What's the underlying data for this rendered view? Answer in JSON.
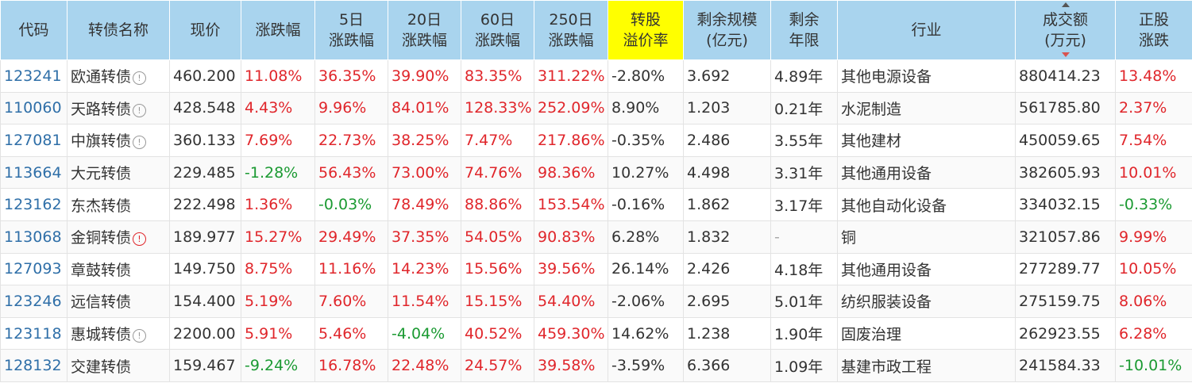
{
  "headers": {
    "code": "代码",
    "name": "转债名称",
    "price": "现价",
    "change": "涨跌幅",
    "d5": [
      "5日",
      "涨跌幅"
    ],
    "d20": [
      "20日",
      "涨跌幅"
    ],
    "d60": [
      "60日",
      "涨跌幅"
    ],
    "d250": [
      "250日",
      "涨跌幅"
    ],
    "premium": [
      "转股",
      "溢价率"
    ],
    "scale": [
      "剩余规模",
      "(亿元)"
    ],
    "years": [
      "剩余",
      "年限"
    ],
    "industry": "行业",
    "volume": [
      "成交额",
      "(万元)"
    ],
    "stock_change": [
      "正股",
      "涨跌"
    ]
  },
  "highlight_color": "#ffff00",
  "up_color": "#e0262b",
  "down_color": "#1b9a32",
  "sort": {
    "column": "volume",
    "direction": "descending"
  },
  "rows": [
    {
      "code": "123241",
      "name": "欧通转债",
      "icon": "info-icon",
      "price": "460.200",
      "change": "11.08%",
      "d5": "36.35%",
      "d20": "39.90%",
      "d60": "83.35%",
      "d250": "311.22%",
      "premium": "-2.80%",
      "scale": "3.692",
      "years": "4.89年",
      "industry": "其他电源设备",
      "volume": "880414.23",
      "stock_change": "13.48%"
    },
    {
      "code": "110060",
      "name": "天路转债",
      "icon": "info-icon",
      "price": "428.548",
      "change": "4.43%",
      "d5": "9.96%",
      "d20": "84.01%",
      "d60": "128.33%",
      "d250": "252.09%",
      "premium": "8.90%",
      "scale": "1.203",
      "years": "0.21年",
      "industry": "水泥制造",
      "volume": "561785.80",
      "stock_change": "2.37%"
    },
    {
      "code": "127081",
      "name": "中旗转债",
      "icon": "info-icon",
      "price": "360.133",
      "change": "7.69%",
      "d5": "22.73%",
      "d20": "38.25%",
      "d60": "7.47%",
      "d250": "217.86%",
      "premium": "-0.35%",
      "scale": "2.486",
      "years": "3.55年",
      "industry": "其他建材",
      "volume": "450059.65",
      "stock_change": "7.54%"
    },
    {
      "code": "113664",
      "name": "大元转债",
      "icon": "",
      "price": "229.485",
      "change": "-1.28%",
      "d5": "56.43%",
      "d20": "73.00%",
      "d60": "74.76%",
      "d250": "98.36%",
      "premium": "10.27%",
      "scale": "4.498",
      "years": "3.31年",
      "industry": "其他通用设备",
      "volume": "382605.93",
      "stock_change": "10.01%"
    },
    {
      "code": "123162",
      "name": "东杰转债",
      "icon": "",
      "price": "222.498",
      "change": "1.36%",
      "d5": "-0.03%",
      "d20": "78.49%",
      "d60": "88.86%",
      "d250": "153.54%",
      "premium": "-0.16%",
      "scale": "1.862",
      "years": "3.17年",
      "industry": "其他自动化设备",
      "volume": "334032.15",
      "stock_change": "-0.33%"
    },
    {
      "code": "113068",
      "name": "金铜转债",
      "icon": "warning-icon",
      "price": "189.977",
      "change": "15.27%",
      "d5": "29.49%",
      "d20": "37.35%",
      "d60": "54.05%",
      "d250": "90.83%",
      "premium": "6.28%",
      "scale": "1.832",
      "years": "-",
      "industry": "铜",
      "volume": "321057.86",
      "stock_change": "9.99%"
    },
    {
      "code": "127093",
      "name": "章鼓转债",
      "icon": "",
      "price": "149.750",
      "change": "8.75%",
      "d5": "11.16%",
      "d20": "14.23%",
      "d60": "15.56%",
      "d250": "39.56%",
      "premium": "26.14%",
      "scale": "2.426",
      "years": "4.18年",
      "industry": "其他通用设备",
      "volume": "277289.77",
      "stock_change": "10.05%"
    },
    {
      "code": "123246",
      "name": "远信转债",
      "icon": "",
      "price": "154.400",
      "change": "5.19%",
      "d5": "7.60%",
      "d20": "11.54%",
      "d60": "15.15%",
      "d250": "54.40%",
      "premium": "-2.06%",
      "scale": "2.695",
      "years": "5.01年",
      "industry": "纺织服装设备",
      "volume": "275159.75",
      "stock_change": "8.06%"
    },
    {
      "code": "123118",
      "name": "惠城转债",
      "icon": "info-icon",
      "price": "2200.00",
      "change": "5.91%",
      "d5": "5.46%",
      "d20": "-4.04%",
      "d60": "40.52%",
      "d250": "459.30%",
      "premium": "14.62%",
      "scale": "1.238",
      "years": "1.90年",
      "industry": "固废治理",
      "volume": "262923.55",
      "stock_change": "6.28%"
    },
    {
      "code": "128132",
      "name": "交建转债",
      "icon": "",
      "price": "159.467",
      "change": "-9.24%",
      "d5": "16.78%",
      "d20": "22.48%",
      "d60": "24.57%",
      "d250": "39.58%",
      "premium": "-3.59%",
      "scale": "6.366",
      "years": "1.09年",
      "industry": "基建市政工程",
      "volume": "241584.33",
      "stock_change": "-10.01%"
    }
  ]
}
